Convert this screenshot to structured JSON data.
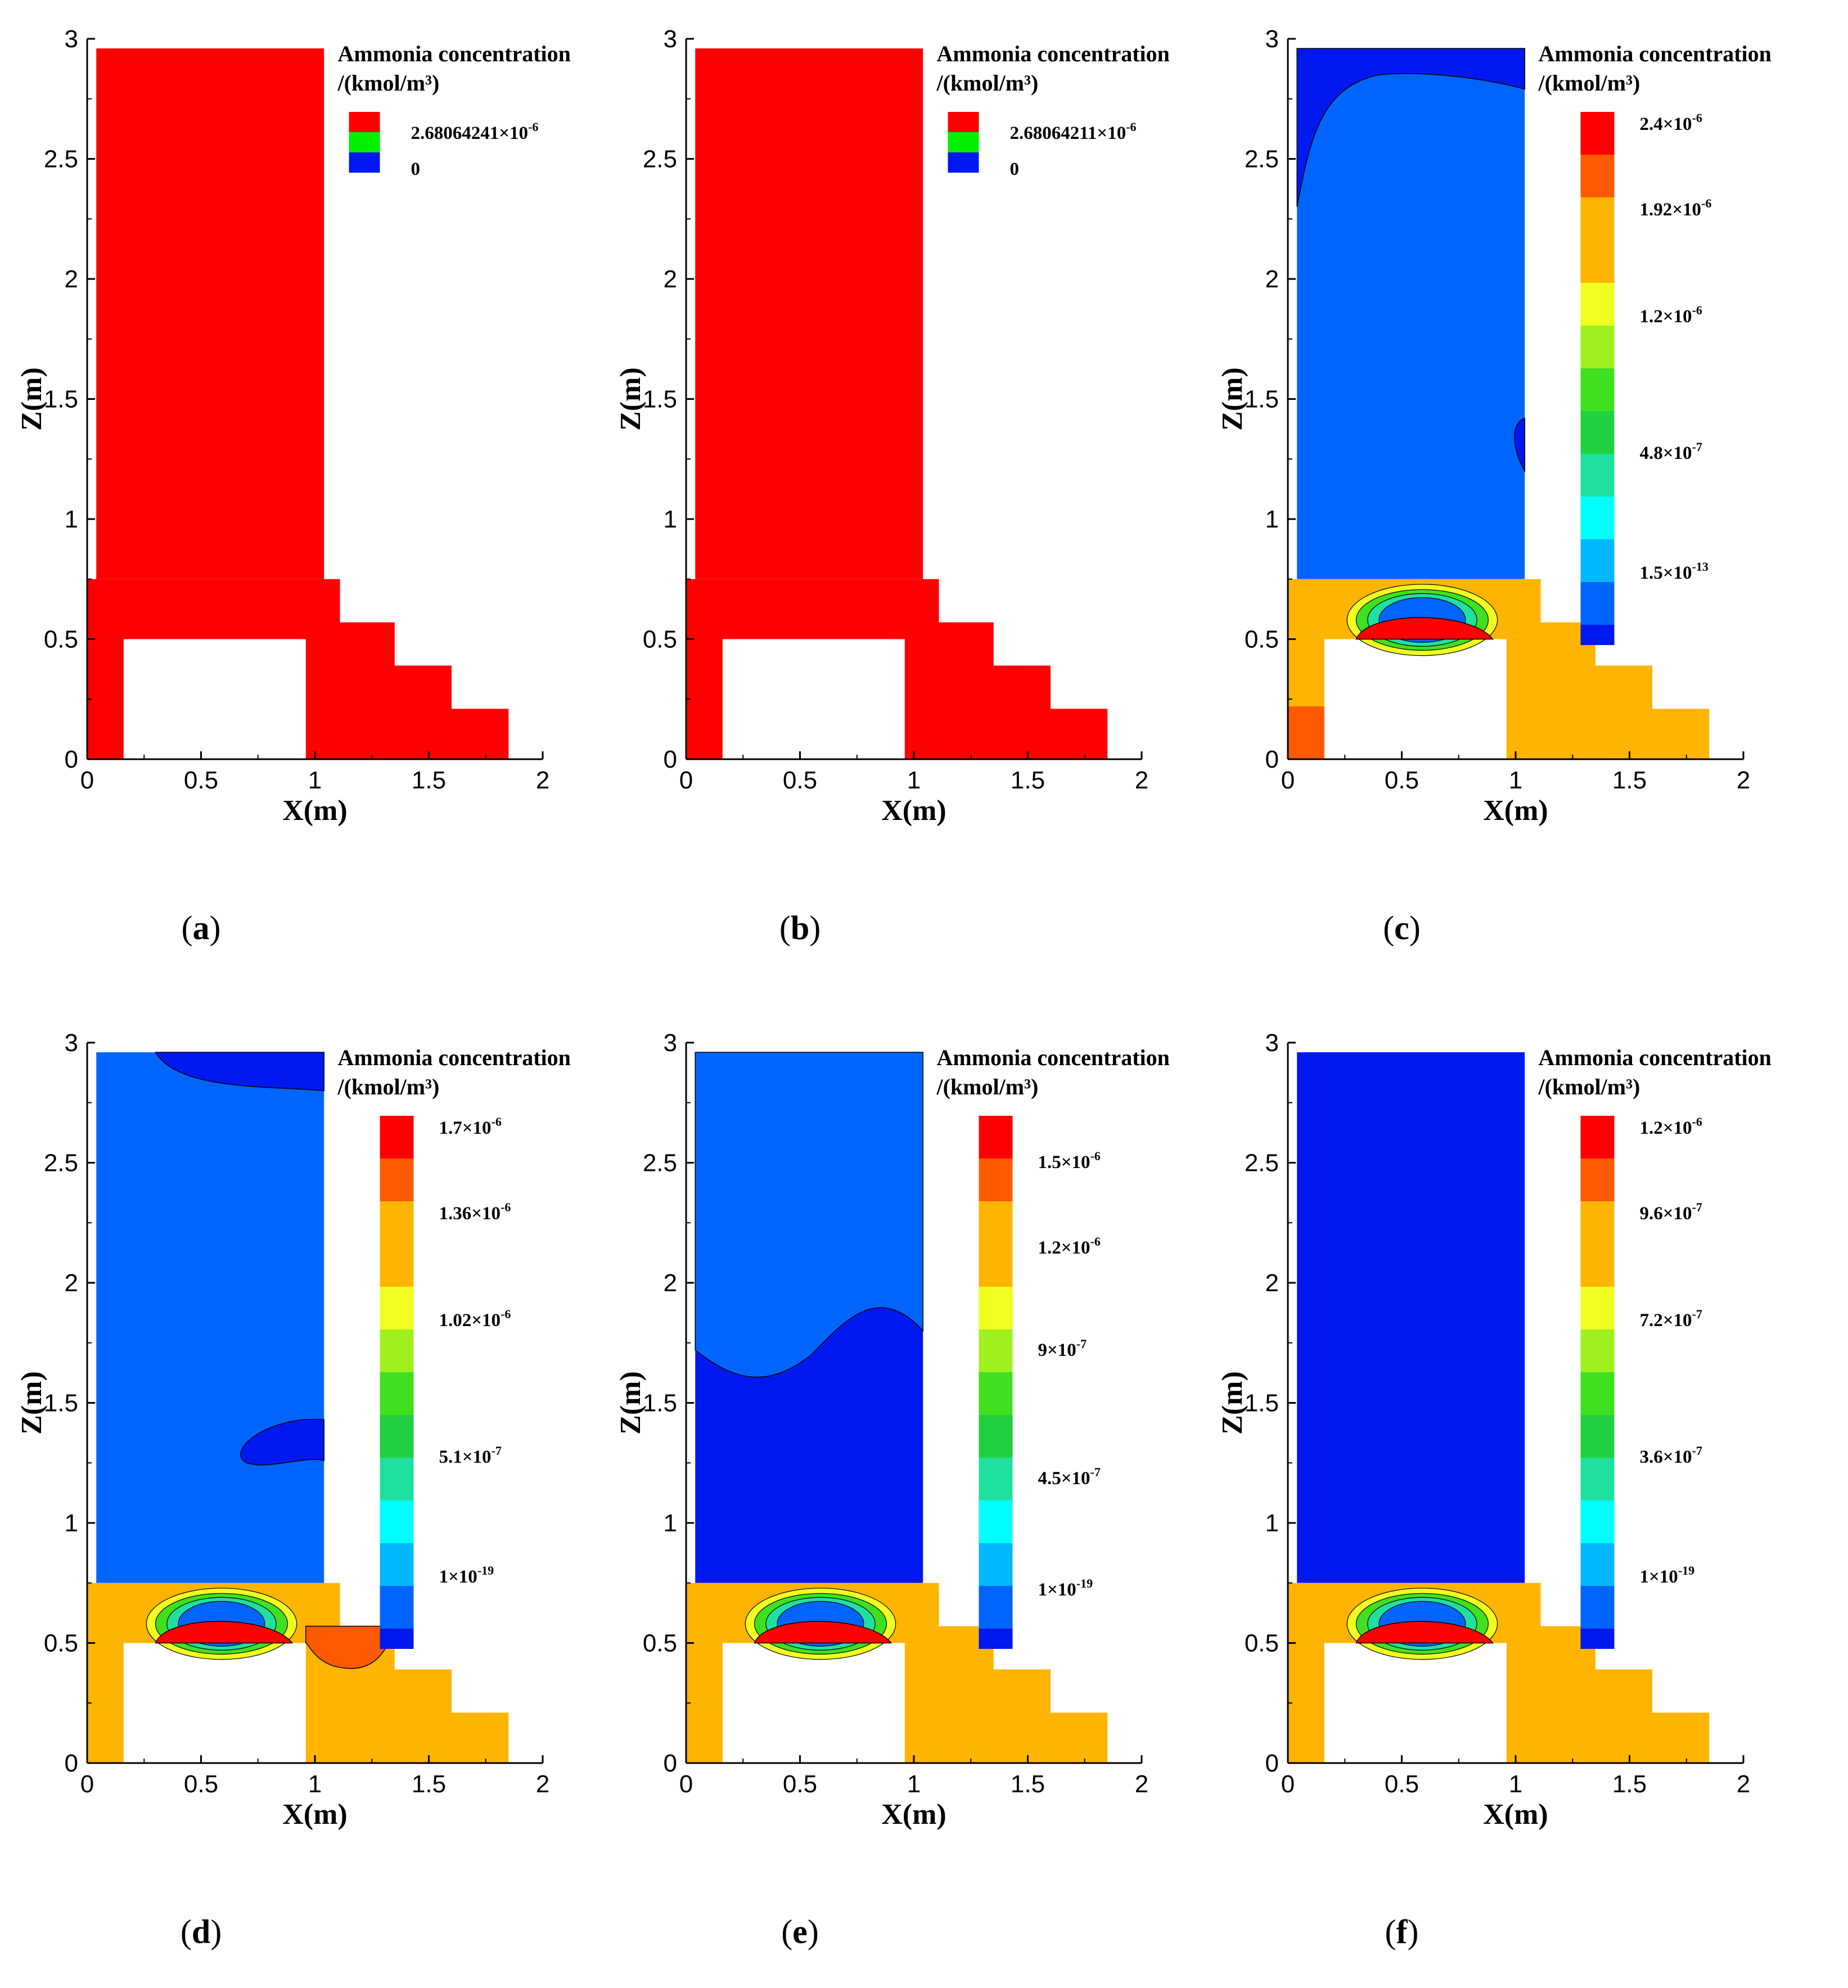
{
  "colors": {
    "red": "#ff0000",
    "orange_red": "#ff5a00",
    "orange": "#ffb400",
    "yellow": "#f0ff20",
    "yellow_green": "#a0f020",
    "green": "#40e020",
    "green2": "#20d040",
    "teal": "#20e0a0",
    "cyan": "#00ffff",
    "sky": "#00b8ff",
    "blue": "#0064ff",
    "dark_blue": "#0018f0",
    "legend_green": "#00f000"
  },
  "chart_data": [
    {
      "type": "heatmap",
      "caption": "a",
      "xlabel": "X(m)",
      "ylabel": "Z(m)",
      "xlim": [
        0,
        2
      ],
      "ylim": [
        0,
        3
      ],
      "x_ticks": [
        "0",
        "0.5",
        "1",
        "1.5",
        "2"
      ],
      "y_ticks": [
        "0",
        "0.5",
        "1",
        "1.5",
        "2",
        "2.5",
        "3"
      ],
      "legend": {
        "title": [
          "Ammonia concentration",
          "/(kmol/m³)"
        ],
        "levels": [
          {
            "label": "2.68064241×10",
            "exp": "-6",
            "color": "#ff0000"
          },
          {
            "label": "",
            "exp": "",
            "color": "#00f000"
          },
          {
            "label": "0",
            "exp": "",
            "color": "#0018f0"
          }
        ]
      },
      "field": "uniform",
      "field_color": "#ff0000"
    },
    {
      "type": "heatmap",
      "caption": "b",
      "xlabel": "X(m)",
      "ylabel": "Z(m)",
      "xlim": [
        0,
        2
      ],
      "ylim": [
        0,
        3
      ],
      "x_ticks": [
        "0",
        "0.5",
        "1",
        "1.5",
        "2"
      ],
      "y_ticks": [
        "0",
        "0.5",
        "1",
        "1.5",
        "2",
        "2.5",
        "3"
      ],
      "legend": {
        "title": [
          "Ammonia concentration",
          "/(kmol/m³)"
        ],
        "levels": [
          {
            "label": "2.68064211×10",
            "exp": "-6",
            "color": "#ff0000"
          },
          {
            "label": "",
            "exp": "",
            "color": "#00f000"
          },
          {
            "label": "0",
            "exp": "",
            "color": "#0018f0"
          }
        ]
      },
      "field": "uniform",
      "field_color": "#ff0000"
    },
    {
      "type": "heatmap",
      "caption": "c",
      "xlabel": "X(m)",
      "ylabel": "Z(m)",
      "xlim": [
        0,
        2
      ],
      "ylim": [
        0,
        3
      ],
      "x_ticks": [
        "0",
        "0.5",
        "1",
        "1.5",
        "2"
      ],
      "y_ticks": [
        "0",
        "0.5",
        "1",
        "1.5",
        "2",
        "2.5",
        "3"
      ],
      "legend": {
        "title": [
          "Ammonia concentration",
          "/(kmol/m³)"
        ],
        "max": "2.4×10^-6",
        "min": "1.5×10^-13",
        "tick_labels": [
          {
            "label": "2.4×10",
            "exp": "-6",
            "pos": 0
          },
          {
            "label": "1.92×10",
            "exp": "-6",
            "pos": 2
          },
          {
            "label": "1.2×10",
            "exp": "-6",
            "pos": 4.5
          },
          {
            "label": "4.8×10",
            "exp": "-7",
            "pos": 7.7
          },
          {
            "label": "1.5×10",
            "exp": "-13",
            "pos": 10.5
          }
        ]
      },
      "field": "contour",
      "upper_color": "#0064ff",
      "lower_color": "#ffb400",
      "hot_spot_color": "#ff0000"
    },
    {
      "type": "heatmap",
      "caption": "d",
      "xlabel": "X(m)",
      "ylabel": "Z(m)",
      "xlim": [
        0,
        2
      ],
      "ylim": [
        0,
        3
      ],
      "x_ticks": [
        "0",
        "0.5",
        "1",
        "1.5",
        "2"
      ],
      "y_ticks": [
        "0",
        "0.5",
        "1",
        "1.5",
        "2",
        "2.5",
        "3"
      ],
      "legend": {
        "title": [
          "Ammonia concentration",
          "/(kmol/m³)"
        ],
        "max": "1.7×10^-6",
        "min": "1×10^-19",
        "tick_labels": [
          {
            "label": "1.7×10",
            "exp": "-6",
            "pos": 0
          },
          {
            "label": "1.36×10",
            "exp": "-6",
            "pos": 2
          },
          {
            "label": "1.02×10",
            "exp": "-6",
            "pos": 4.5
          },
          {
            "label": "5.1×10",
            "exp": "-7",
            "pos": 7.7
          },
          {
            "label": "1×10",
            "exp": "-19",
            "pos": 10.5
          }
        ]
      },
      "field": "contour",
      "upper_color": "#0064ff",
      "lower_color": "#ffb400",
      "hot_spot_color": "#ff0000"
    },
    {
      "type": "heatmap",
      "caption": "e",
      "xlabel": "X(m)",
      "ylabel": "Z(m)",
      "xlim": [
        0,
        2
      ],
      "ylim": [
        0,
        3
      ],
      "x_ticks": [
        "0",
        "0.5",
        "1",
        "1.5",
        "2"
      ],
      "y_ticks": [
        "0",
        "0.5",
        "1",
        "1.5",
        "2",
        "2.5",
        "3"
      ],
      "legend": {
        "title": [
          "Ammonia concentration",
          "/(kmol/m³)"
        ],
        "max": "1.5×10^-6",
        "min": "1×10^-19",
        "tick_labels": [
          {
            "label": "1.5×10",
            "exp": "-6",
            "pos": 0.8
          },
          {
            "label": "1.2×10",
            "exp": "-6",
            "pos": 2.8
          },
          {
            "label": "9×10",
            "exp": "-7",
            "pos": 5.2
          },
          {
            "label": "4.5×10",
            "exp": "-7",
            "pos": 8.2
          },
          {
            "label": "1×10",
            "exp": "-19",
            "pos": 10.8
          }
        ]
      },
      "field": "contour",
      "upper_color": "#0018f0",
      "lower_color": "#ffb400",
      "hot_spot_color": "#ff0000"
    },
    {
      "type": "heatmap",
      "caption": "f",
      "xlabel": "X(m)",
      "ylabel": "Z(m)",
      "xlim": [
        0,
        2
      ],
      "ylim": [
        0,
        3
      ],
      "x_ticks": [
        "0",
        "0.5",
        "1",
        "1.5",
        "2"
      ],
      "y_ticks": [
        "0",
        "0.5",
        "1",
        "1.5",
        "2",
        "2.5",
        "3"
      ],
      "legend": {
        "title": [
          "Ammonia concentration",
          "/(kmol/m³)"
        ],
        "max": "1.2×10^-6",
        "min": "1×10^-19",
        "tick_labels": [
          {
            "label": "1.2×10",
            "exp": "-6",
            "pos": 0
          },
          {
            "label": "9.6×10",
            "exp": "-7",
            "pos": 2
          },
          {
            "label": "7.2×10",
            "exp": "-7",
            "pos": 4.5
          },
          {
            "label": "3.6×10",
            "exp": "-7",
            "pos": 7.7
          },
          {
            "label": "1×10",
            "exp": "-19",
            "pos": 10.5
          }
        ]
      },
      "field": "contour",
      "upper_color": "#0018f0",
      "lower_color": "#ffb400",
      "hot_spot_color": "#ff0000"
    }
  ]
}
